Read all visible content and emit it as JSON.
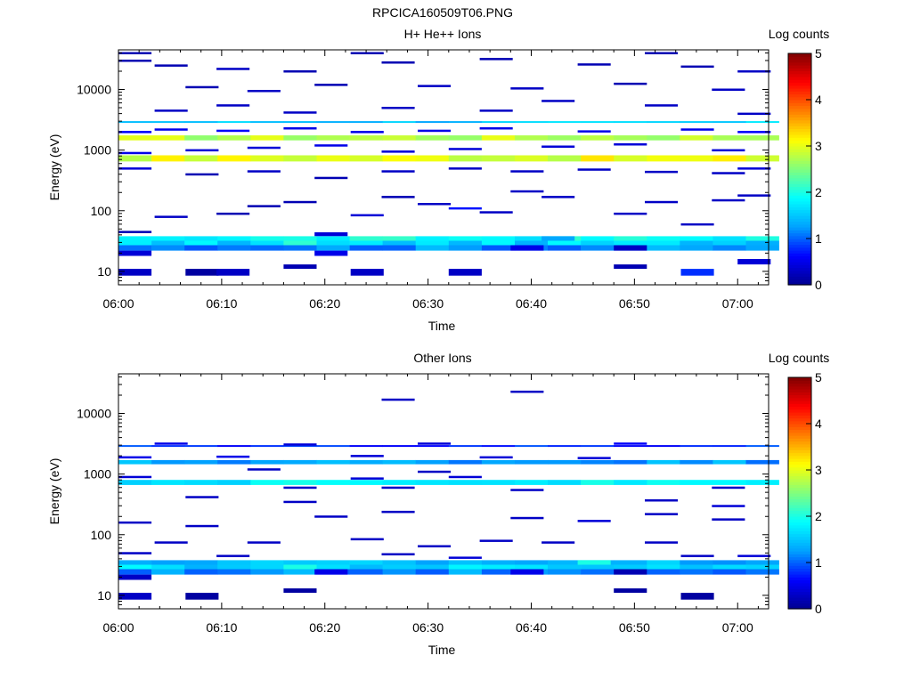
{
  "figure_title": "RPCICA160509T06.PNG",
  "colormap": [
    "#00008f",
    "#0000ff",
    "#00a0ff",
    "#00ffff",
    "#7fff7f",
    "#ffff00",
    "#ff8000",
    "#ff0000",
    "#800000"
  ],
  "chart_data": [
    {
      "type": "heatmap",
      "title": "H+ He++ Ions",
      "xlabel": "Time",
      "ylabel": "Energy (eV)",
      "colorbar_label": "Log counts",
      "x_ticks": [
        "06:00",
        "06:10",
        "06:20",
        "06:30",
        "06:40",
        "06:50",
        "07:00"
      ],
      "y_ticks": [
        "10",
        "100",
        "1000",
        "10000"
      ],
      "y_scale": "log",
      "ylim": [
        6,
        45000
      ],
      "xlim_minutes": [
        0,
        63
      ],
      "zlim": [
        0,
        5
      ],
      "colorbar_ticks": [
        "0",
        "1",
        "2",
        "3",
        "4",
        "5"
      ],
      "bands": [
        {
          "e_lo": 1450,
          "e_hi": 1750,
          "z": 2.8
        },
        {
          "e_lo": 650,
          "e_hi": 820,
          "z": 3.0
        },
        {
          "e_lo": 2800,
          "e_hi": 3000,
          "z": 1.5
        },
        {
          "e_lo": 32,
          "e_hi": 38,
          "z": 1.9
        },
        {
          "e_lo": 27,
          "e_hi": 32,
          "z": 1.6
        },
        {
          "e_lo": 22,
          "e_hi": 27,
          "z": 1.2
        }
      ],
      "cells": [
        {
          "t": 0,
          "e_lo": 8.5,
          "e_hi": 11,
          "z": 0.3
        },
        {
          "t": 6.5,
          "e_lo": 8.5,
          "e_hi": 11,
          "z": 0.1
        },
        {
          "t": 9.5,
          "e_lo": 8.5,
          "e_hi": 11,
          "z": 0.3
        },
        {
          "t": 22.5,
          "e_lo": 8.5,
          "e_hi": 11,
          "z": 0.3
        },
        {
          "t": 32,
          "e_lo": 8.5,
          "e_hi": 11,
          "z": 0.3
        },
        {
          "t": 54.5,
          "e_lo": 8.5,
          "e_hi": 11,
          "z": 0.8
        },
        {
          "t": 16,
          "e_lo": 11,
          "e_hi": 13,
          "z": 0.2
        },
        {
          "t": 48,
          "e_lo": 11,
          "e_hi": 13,
          "z": 0.2
        },
        {
          "t": 60,
          "e_lo": 13,
          "e_hi": 16,
          "z": 0.4
        },
        {
          "t": 0,
          "e_lo": 18,
          "e_hi": 22,
          "z": 0.4
        },
        {
          "t": 19,
          "e_lo": 18,
          "e_hi": 22,
          "z": 0.5
        },
        {
          "t": 38,
          "e_lo": 22,
          "e_hi": 27,
          "z": 0.5
        },
        {
          "t": 48,
          "e_lo": 22,
          "e_hi": 27,
          "z": 0.3
        },
        {
          "t": 16,
          "e_lo": 27,
          "e_hi": 32,
          "z": 2.1
        },
        {
          "t": 41,
          "e_lo": 32,
          "e_hi": 38,
          "z": 1.3
        },
        {
          "t": 19,
          "e_lo": 38,
          "e_hi": 44,
          "z": 0.4
        }
      ],
      "lines": [
        {
          "t": 0,
          "e": 45,
          "z": 0.2
        },
        {
          "t": 3.5,
          "e": 80,
          "z": 0.3
        },
        {
          "t": 9.5,
          "e": 90,
          "z": 0.2
        },
        {
          "t": 12.5,
          "e": 120,
          "z": 0.2
        },
        {
          "t": 16,
          "e": 140,
          "z": 0.2
        },
        {
          "t": 22.5,
          "e": 85,
          "z": 0.4
        },
        {
          "t": 25.5,
          "e": 170,
          "z": 0.2
        },
        {
          "t": 29,
          "e": 130,
          "z": 0.3
        },
        {
          "t": 32,
          "e": 110,
          "z": 0.7
        },
        {
          "t": 35,
          "e": 95,
          "z": 0.3
        },
        {
          "t": 38,
          "e": 210,
          "z": 0.3
        },
        {
          "t": 41,
          "e": 170,
          "z": 0.3
        },
        {
          "t": 48,
          "e": 90,
          "z": 0.3
        },
        {
          "t": 51,
          "e": 140,
          "z": 0.3
        },
        {
          "t": 54.5,
          "e": 60,
          "z": 0.3
        },
        {
          "t": 57.5,
          "e": 150,
          "z": 0.3
        },
        {
          "t": 60,
          "e": 180,
          "z": 0.3
        },
        {
          "t": 0,
          "e": 500,
          "z": 0.4
        },
        {
          "t": 6.5,
          "e": 400,
          "z": 0.2
        },
        {
          "t": 12.5,
          "e": 450,
          "z": 0.3
        },
        {
          "t": 19,
          "e": 350,
          "z": 0.2
        },
        {
          "t": 25.5,
          "e": 450,
          "z": 0.3
        },
        {
          "t": 32,
          "e": 500,
          "z": 0.3
        },
        {
          "t": 38,
          "e": 450,
          "z": 0.3
        },
        {
          "t": 44.5,
          "e": 480,
          "z": 0.3
        },
        {
          "t": 51,
          "e": 440,
          "z": 0.3
        },
        {
          "t": 57.5,
          "e": 420,
          "z": 0.3
        },
        {
          "t": 60,
          "e": 500,
          "z": 0.4
        },
        {
          "t": 3.5,
          "e": 4500,
          "z": 0.3
        },
        {
          "t": 9.5,
          "e": 5500,
          "z": 0.3
        },
        {
          "t": 16,
          "e": 4200,
          "z": 0.3
        },
        {
          "t": 25.5,
          "e": 5000,
          "z": 0.3
        },
        {
          "t": 35,
          "e": 4500,
          "z": 0.3
        },
        {
          "t": 41,
          "e": 6500,
          "z": 0.3
        },
        {
          "t": 51,
          "e": 5500,
          "z": 0.3
        },
        {
          "t": 60,
          "e": 4000,
          "z": 0.3
        },
        {
          "t": 0,
          "e": 30000,
          "z": 0.2
        },
        {
          "t": 3.5,
          "e": 25000,
          "z": 0.2
        },
        {
          "t": 9.5,
          "e": 22000,
          "z": 0.3
        },
        {
          "t": 16,
          "e": 20000,
          "z": 0.2
        },
        {
          "t": 25.5,
          "e": 28000,
          "z": 0.2
        },
        {
          "t": 35,
          "e": 32000,
          "z": 0.2
        },
        {
          "t": 44.5,
          "e": 26000,
          "z": 0.2
        },
        {
          "t": 54.5,
          "e": 24000,
          "z": 0.2
        },
        {
          "t": 60,
          "e": 20000,
          "z": 0.3
        },
        {
          "t": 0,
          "e": 40000,
          "z": 0.2
        },
        {
          "t": 22.5,
          "e": 40000,
          "z": 0.2
        },
        {
          "t": 51,
          "e": 40000,
          "z": 0.2
        },
        {
          "t": 6.5,
          "e": 11000,
          "z": 0.2
        },
        {
          "t": 12.5,
          "e": 9500,
          "z": 0.3
        },
        {
          "t": 19,
          "e": 12000,
          "z": 0.2
        },
        {
          "t": 29,
          "e": 11500,
          "z": 0.3
        },
        {
          "t": 38,
          "e": 10500,
          "z": 0.3
        },
        {
          "t": 48,
          "e": 12500,
          "z": 0.2
        },
        {
          "t": 57.5,
          "e": 10000,
          "z": 0.3
        },
        {
          "t": 0,
          "e": 2000,
          "z": 0.6
        },
        {
          "t": 3.5,
          "e": 2200,
          "z": 0.5
        },
        {
          "t": 9.5,
          "e": 2100,
          "z": 0.6
        },
        {
          "t": 16,
          "e": 2300,
          "z": 0.5
        },
        {
          "t": 22.5,
          "e": 2000,
          "z": 0.5
        },
        {
          "t": 29,
          "e": 2100,
          "z": 0.5
        },
        {
          "t": 35,
          "e": 2300,
          "z": 0.5
        },
        {
          "t": 44.5,
          "e": 2050,
          "z": 0.5
        },
        {
          "t": 54.5,
          "e": 2200,
          "z": 0.5
        },
        {
          "t": 60,
          "e": 2000,
          "z": 0.6
        },
        {
          "t": 0,
          "e": 900,
          "z": 0.5
        },
        {
          "t": 6.5,
          "e": 1000,
          "z": 0.4
        },
        {
          "t": 12.5,
          "e": 1100,
          "z": 0.4
        },
        {
          "t": 19,
          "e": 1200,
          "z": 0.5
        },
        {
          "t": 25.5,
          "e": 950,
          "z": 0.4
        },
        {
          "t": 32,
          "e": 1050,
          "z": 0.4
        },
        {
          "t": 41,
          "e": 1150,
          "z": 0.4
        },
        {
          "t": 48,
          "e": 1250,
          "z": 0.4
        },
        {
          "t": 57.5,
          "e": 1000,
          "z": 0.4
        }
      ]
    },
    {
      "type": "heatmap",
      "title": "Other Ions",
      "xlabel": "Time",
      "ylabel": "Energy (eV)",
      "colorbar_label": "Log counts",
      "x_ticks": [
        "06:00",
        "06:10",
        "06:20",
        "06:30",
        "06:40",
        "06:50",
        "07:00"
      ],
      "y_ticks": [
        "10",
        "100",
        "1000",
        "10000"
      ],
      "y_scale": "log",
      "ylim": [
        6,
        45000
      ],
      "xlim_minutes": [
        0,
        63
      ],
      "zlim": [
        0,
        5
      ],
      "colorbar_ticks": [
        "0",
        "1",
        "2",
        "3",
        "4",
        "5"
      ],
      "bands": [
        {
          "e_lo": 1450,
          "e_hi": 1700,
          "z": 1.3
        },
        {
          "e_lo": 660,
          "e_hi": 800,
          "z": 1.8
        },
        {
          "e_lo": 2800,
          "e_hi": 3000,
          "z": 0.8
        },
        {
          "e_lo": 32,
          "e_hi": 38,
          "z": 1.4
        },
        {
          "e_lo": 27,
          "e_hi": 32,
          "z": 1.6
        },
        {
          "e_lo": 22,
          "e_hi": 27,
          "z": 1.2
        }
      ],
      "cells": [
        {
          "t": 0,
          "e_lo": 8.5,
          "e_hi": 11,
          "z": 0.3
        },
        {
          "t": 6.5,
          "e_lo": 8.5,
          "e_hi": 11,
          "z": 0.1
        },
        {
          "t": 54.5,
          "e_lo": 8.5,
          "e_hi": 11,
          "z": 0.1
        },
        {
          "t": 16,
          "e_lo": 11,
          "e_hi": 13,
          "z": 0.1
        },
        {
          "t": 48,
          "e_lo": 11,
          "e_hi": 13,
          "z": 0.1
        },
        {
          "t": 0,
          "e_lo": 18,
          "e_hi": 22,
          "z": 0.3
        },
        {
          "t": 19,
          "e_lo": 22,
          "e_hi": 27,
          "z": 0.5
        },
        {
          "t": 38,
          "e_lo": 22,
          "e_hi": 27,
          "z": 0.5
        },
        {
          "t": 48,
          "e_lo": 22,
          "e_hi": 27,
          "z": 0.2
        },
        {
          "t": 44.5,
          "e_lo": 32,
          "e_hi": 38,
          "z": 2.0
        },
        {
          "t": 16,
          "e_lo": 27,
          "e_hi": 32,
          "z": 2.0
        }
      ],
      "lines": [
        {
          "t": 25.5,
          "e": 17000,
          "z": 0.3
        },
        {
          "t": 38,
          "e": 23000,
          "z": 0.3
        },
        {
          "t": 3.5,
          "e": 3200,
          "z": 0.5
        },
        {
          "t": 16,
          "e": 3100,
          "z": 0.4
        },
        {
          "t": 29,
          "e": 3200,
          "z": 0.4
        },
        {
          "t": 48,
          "e": 3200,
          "z": 0.6
        },
        {
          "t": 12.5,
          "e": 1200,
          "z": 0.3
        },
        {
          "t": 29,
          "e": 1100,
          "z": 0.3
        },
        {
          "t": 16,
          "e": 600,
          "z": 0.3
        },
        {
          "t": 25.5,
          "e": 600,
          "z": 0.3
        },
        {
          "t": 38,
          "e": 550,
          "z": 0.3
        },
        {
          "t": 57.5,
          "e": 600,
          "z": 0.3
        },
        {
          "t": 6.5,
          "e": 420,
          "z": 0.3
        },
        {
          "t": 16,
          "e": 350,
          "z": 0.3
        },
        {
          "t": 51,
          "e": 370,
          "z": 0.3
        },
        {
          "t": 57.5,
          "e": 300,
          "z": 0.4
        },
        {
          "t": 0,
          "e": 160,
          "z": 0.3
        },
        {
          "t": 6.5,
          "e": 140,
          "z": 0.3
        },
        {
          "t": 19,
          "e": 200,
          "z": 0.3
        },
        {
          "t": 25.5,
          "e": 240,
          "z": 0.3
        },
        {
          "t": 38,
          "e": 190,
          "z": 0.3
        },
        {
          "t": 44.5,
          "e": 170,
          "z": 0.4
        },
        {
          "t": 51,
          "e": 220,
          "z": 0.3
        },
        {
          "t": 57.5,
          "e": 180,
          "z": 0.3
        },
        {
          "t": 3.5,
          "e": 75,
          "z": 0.3
        },
        {
          "t": 12.5,
          "e": 75,
          "z": 0.3
        },
        {
          "t": 22.5,
          "e": 85,
          "z": 0.3
        },
        {
          "t": 29,
          "e": 65,
          "z": 0.3
        },
        {
          "t": 35,
          "e": 80,
          "z": 0.3
        },
        {
          "t": 41,
          "e": 75,
          "z": 0.3
        },
        {
          "t": 51,
          "e": 75,
          "z": 0.3
        },
        {
          "t": 0,
          "e": 50,
          "z": 0.3
        },
        {
          "t": 9.5,
          "e": 45,
          "z": 0.3
        },
        {
          "t": 25.5,
          "e": 48,
          "z": 0.3
        },
        {
          "t": 32,
          "e": 42,
          "z": 0.4
        },
        {
          "t": 54.5,
          "e": 45,
          "z": 0.3
        },
        {
          "t": 60,
          "e": 45,
          "z": 0.4
        },
        {
          "t": 0,
          "e": 1900,
          "z": 0.5
        },
        {
          "t": 9.5,
          "e": 1950,
          "z": 0.5
        },
        {
          "t": 22.5,
          "e": 2000,
          "z": 0.4
        },
        {
          "t": 35,
          "e": 1900,
          "z": 0.4
        },
        {
          "t": 44.5,
          "e": 1850,
          "z": 0.4
        },
        {
          "t": 0,
          "e": 900,
          "z": 0.4
        },
        {
          "t": 22.5,
          "e": 850,
          "z": 0.4
        },
        {
          "t": 32,
          "e": 900,
          "z": 0.4
        }
      ]
    }
  ]
}
